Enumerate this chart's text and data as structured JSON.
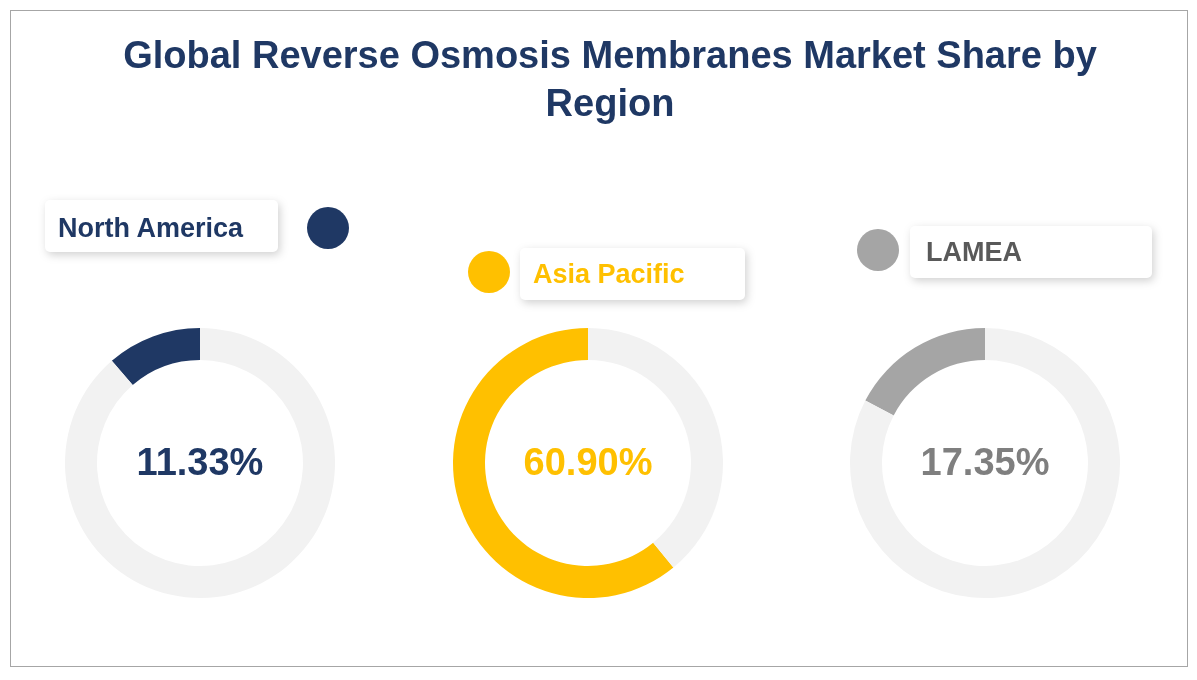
{
  "chart_data": [
    {
      "type": "donut",
      "title": "Global Reverse Osmosis Membranes Market Share by Region",
      "categories": [
        "North America",
        null
      ],
      "values": [
        11.33,
        88.67
      ],
      "colors": [
        "#1f3864",
        "#f2f2f2"
      ],
      "value_labels": [
        "11.33%",
        null
      ],
      "legend": "top"
    },
    {
      "type": "donut",
      "categories": [
        "Asia Pacific",
        null
      ],
      "values": [
        60.9,
        39.1
      ],
      "colors": [
        "#ffc000",
        "#f2f2f2"
      ],
      "value_labels": [
        "60.90%",
        null
      ],
      "legend": "top"
    },
    {
      "type": "donut",
      "categories": [
        "LAMEA",
        null
      ],
      "values": [
        17.35,
        82.65
      ],
      "colors": [
        "#a5a5a5",
        "#f2f2f2"
      ],
      "value_labels": [
        "17.35%",
        null
      ],
      "legend": "top"
    }
  ]
}
